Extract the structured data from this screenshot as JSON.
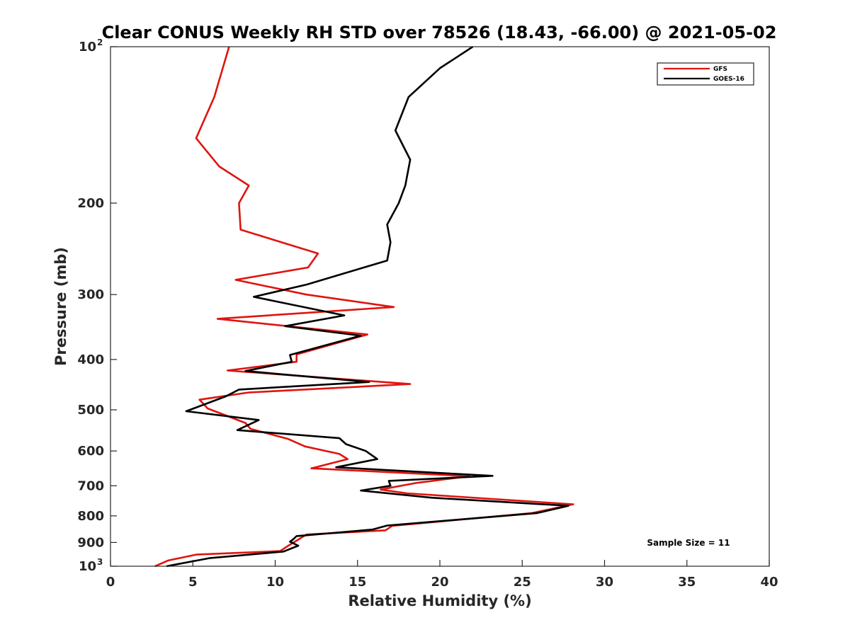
{
  "chart_data": {
    "type": "line",
    "title": "Clear CONUS Weekly RH STD over 78526 (18.43, -66.00) @ 2021-05-02",
    "xlabel": "Relative Humidity (%)",
    "ylabel": "Pressure (mb)",
    "xlim": [
      0,
      40
    ],
    "ylim": [
      100,
      1000
    ],
    "y_scale": "log",
    "y_reversed": true,
    "x_ticks": [
      "0",
      "5",
      "10",
      "15",
      "20",
      "25",
      "30",
      "35",
      "40"
    ],
    "y_ticks": [
      {
        "value": 100,
        "base": "10",
        "exp": "2"
      },
      {
        "value": 200,
        "label": "200"
      },
      {
        "value": 300,
        "label": "300"
      },
      {
        "value": 400,
        "label": "400"
      },
      {
        "value": 500,
        "label": "500"
      },
      {
        "value": 600,
        "label": "600"
      },
      {
        "value": 700,
        "label": "700"
      },
      {
        "value": 800,
        "label": "800"
      },
      {
        "value": 900,
        "label": "900"
      },
      {
        "value": 1000,
        "base": "10",
        "exp": "3"
      }
    ],
    "grid": false,
    "legend_position": "top-right",
    "annotation": "Sample Size = 11",
    "series": [
      {
        "name": "GFS",
        "color": "#e0140f",
        "points": [
          [
            7.2,
            100
          ],
          [
            6.3,
            125
          ],
          [
            5.2,
            150
          ],
          [
            6.6,
            170
          ],
          [
            8.4,
            185
          ],
          [
            7.8,
            200
          ],
          [
            7.9,
            225
          ],
          [
            12.6,
            250
          ],
          [
            12.0,
            266
          ],
          [
            7.6,
            281
          ],
          [
            11.9,
            300
          ],
          [
            17.2,
            317
          ],
          [
            6.5,
            334
          ],
          [
            15.6,
            358
          ],
          [
            11.3,
            391
          ],
          [
            11.3,
            404
          ],
          [
            7.1,
            420
          ],
          [
            18.2,
            446
          ],
          [
            8.4,
            463
          ],
          [
            5.4,
            478
          ],
          [
            5.9,
            497
          ],
          [
            8.2,
            530
          ],
          [
            8.5,
            544
          ],
          [
            10.8,
            569
          ],
          [
            11.8,
            588
          ],
          [
            13.9,
            608
          ],
          [
            14.4,
            622
          ],
          [
            12.2,
            648
          ],
          [
            21.8,
            671
          ],
          [
            18.5,
            692
          ],
          [
            16.4,
            712
          ],
          [
            18.0,
            724
          ],
          [
            28.1,
            760
          ],
          [
            25.6,
            790
          ],
          [
            17.1,
            836
          ],
          [
            16.7,
            853
          ],
          [
            11.9,
            869
          ],
          [
            10.7,
            917
          ],
          [
            10.3,
            935
          ],
          [
            5.2,
            950
          ],
          [
            3.5,
            975
          ],
          [
            2.7,
            1000
          ]
        ]
      },
      {
        "name": "GOES-16",
        "color": "#000000",
        "points": [
          [
            22.0,
            100
          ],
          [
            20.0,
            110
          ],
          [
            18.1,
            125
          ],
          [
            17.3,
            145
          ],
          [
            18.2,
            165
          ],
          [
            17.9,
            185
          ],
          [
            17.5,
            200
          ],
          [
            16.8,
            220
          ],
          [
            17.0,
            238
          ],
          [
            16.8,
            258
          ],
          [
            11.9,
            287
          ],
          [
            8.7,
            303
          ],
          [
            14.2,
            329
          ],
          [
            10.6,
            345
          ],
          [
            15.2,
            360
          ],
          [
            10.9,
            392
          ],
          [
            11.0,
            404
          ],
          [
            8.2,
            421
          ],
          [
            15.7,
            442
          ],
          [
            7.8,
            457
          ],
          [
            7.0,
            471
          ],
          [
            4.6,
            503
          ],
          [
            9.0,
            523
          ],
          [
            7.7,
            547
          ],
          [
            13.9,
            567
          ],
          [
            14.3,
            582
          ],
          [
            15.5,
            600
          ],
          [
            16.2,
            622
          ],
          [
            13.7,
            645
          ],
          [
            23.2,
            670
          ],
          [
            16.9,
            685
          ],
          [
            17.0,
            700
          ],
          [
            15.2,
            715
          ],
          [
            19.5,
            738
          ],
          [
            27.8,
            765
          ],
          [
            25.9,
            790
          ],
          [
            16.8,
            835
          ],
          [
            15.9,
            850
          ],
          [
            11.3,
            875
          ],
          [
            11.1,
            887
          ],
          [
            10.9,
            897
          ],
          [
            11.4,
            913
          ],
          [
            10.5,
            937
          ],
          [
            6.0,
            965
          ],
          [
            3.4,
            1000
          ]
        ]
      }
    ]
  }
}
